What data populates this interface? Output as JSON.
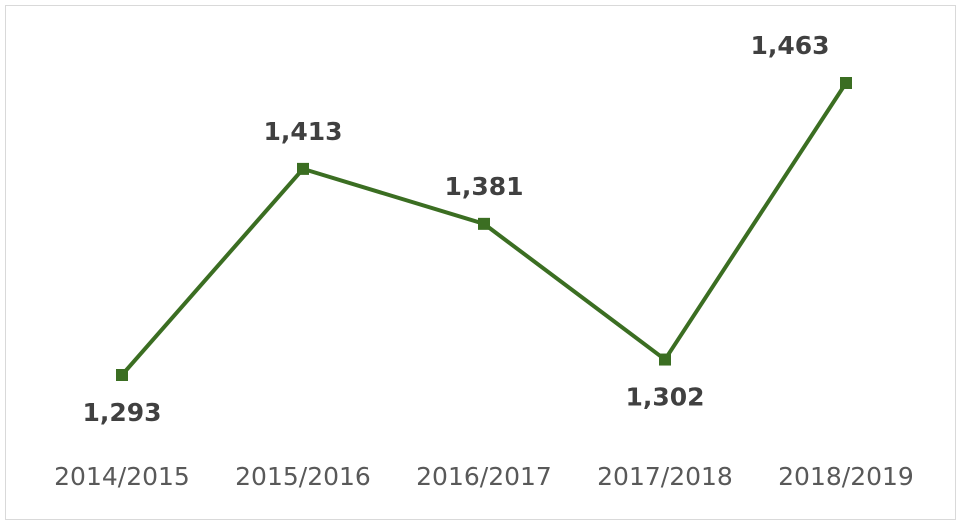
{
  "chart_data": {
    "type": "line",
    "categories": [
      "2014/2015",
      "2015/2016",
      "2016/2017",
      "2017/2018",
      "2018/2019"
    ],
    "series": [
      {
        "color": "#3b6e22",
        "values": [
          1293,
          1413,
          1381,
          1302,
          1463
        ],
        "value_labels": [
          "1,293",
          "1,413",
          "1,381",
          "1,302",
          "1,463"
        ]
      }
    ]
  }
}
